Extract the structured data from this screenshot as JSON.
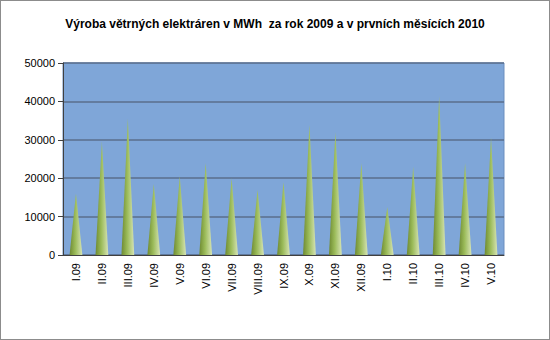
{
  "chart_data": {
    "type": "bar",
    "title": "Výroba větrných elektráren v MWh  za rok 2009 a v prvních měsících 2010",
    "categories": [
      "I.09",
      "II.09",
      "III.09",
      "IV.09",
      "V.09",
      "VI.09",
      "VII.09",
      "VIII.09",
      "IX.09",
      "X.09",
      "XI.09",
      "XII.09",
      "I.10",
      "II.10",
      "III.10",
      "IV.10",
      "V.10"
    ],
    "values": [
      16000,
      29500,
      35500,
      18500,
      20500,
      24000,
      20000,
      17000,
      19000,
      34000,
      32000,
      24000,
      12500,
      23000,
      41500,
      24000,
      30500
    ],
    "color": "#9bbb59",
    "ylim": [
      0,
      50000
    ],
    "yticks": [
      0,
      10000,
      20000,
      30000,
      40000,
      50000
    ],
    "grid": true
  }
}
